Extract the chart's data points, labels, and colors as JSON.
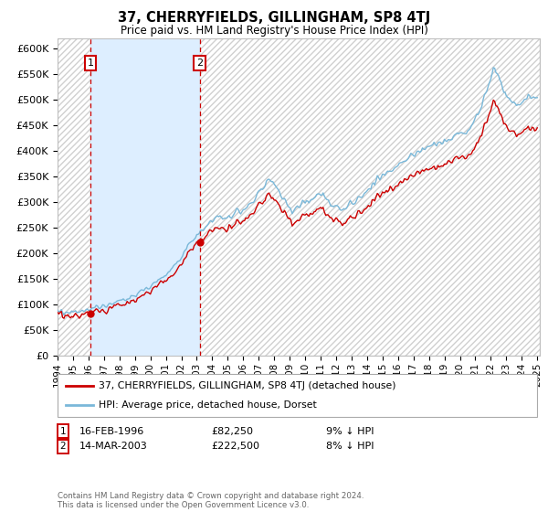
{
  "title": "37, CHERRYFIELDS, GILLINGHAM, SP8 4TJ",
  "subtitle": "Price paid vs. HM Land Registry's House Price Index (HPI)",
  "legend_line1": "37, CHERRYFIELDS, GILLINGHAM, SP8 4TJ (detached house)",
  "legend_line2": "HPI: Average price, detached house, Dorset",
  "footnote": "Contains HM Land Registry data © Crown copyright and database right 2024.\nThis data is licensed under the Open Government Licence v3.0.",
  "purchase1_date": "16-FEB-1996",
  "purchase1_price": 82250,
  "purchase2_date": "14-MAR-2003",
  "purchase2_price": 222500,
  "hpi_color": "#7ab8d9",
  "price_color": "#cc0000",
  "point_color": "#cc0000",
  "vline_color": "#cc0000",
  "shade_color": "#ddeeff",
  "bg_color": "#ffffff",
  "grid_color": "#c8c8c8",
  "hatch_color": "#d0d0d0",
  "ylim": [
    0,
    620000
  ],
  "yticks": [
    0,
    50000,
    100000,
    150000,
    200000,
    250000,
    300000,
    350000,
    400000,
    450000,
    500000,
    550000,
    600000
  ]
}
